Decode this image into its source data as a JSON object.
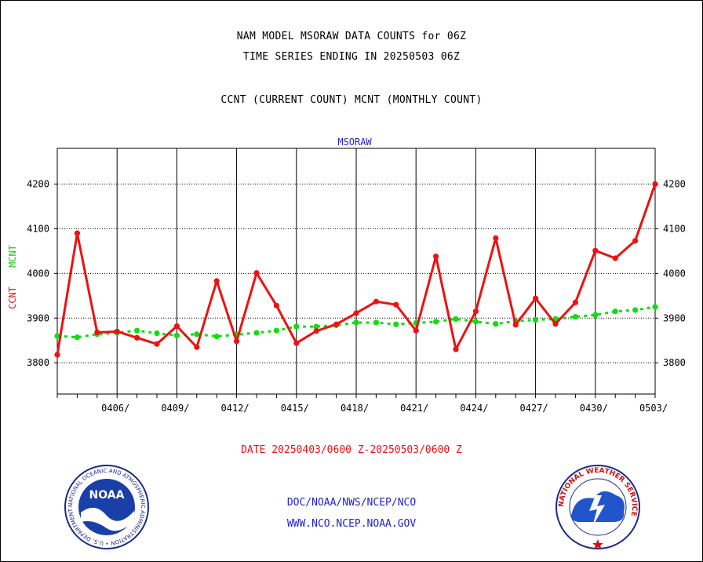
{
  "header": {
    "line1": "NAM MODEL MSORAW DATA COUNTS for 06Z",
    "line2": "TIME SERIES ENDING IN 20250503 06Z",
    "line3": "CCNT (CURRENT COUNT) MCNT (MONTHLY COUNT)"
  },
  "chart_data": {
    "type": "line",
    "title": "MSORAW",
    "ylabel_ccnt": "CCNT",
    "ylabel_mcnt": "MCNT",
    "xlabel": "DATE 20250403/0600 Z-20250503/0600 Z",
    "ylim": [
      3730,
      4280
    ],
    "xlim": [
      0,
      30
    ],
    "y_ticks": [
      3800,
      3900,
      4000,
      4100,
      4200
    ],
    "x_ticks": [
      {
        "pos": 3,
        "label": "0406/"
      },
      {
        "pos": 6,
        "label": "0409/"
      },
      {
        "pos": 9,
        "label": "0412/"
      },
      {
        "pos": 12,
        "label": "0415/"
      },
      {
        "pos": 15,
        "label": "0418/"
      },
      {
        "pos": 18,
        "label": "0421/"
      },
      {
        "pos": 21,
        "label": "0424/"
      },
      {
        "pos": 24,
        "label": "0427/"
      },
      {
        "pos": 27,
        "label": "0430/"
      },
      {
        "pos": 30,
        "label": "0503/"
      }
    ],
    "grid": true,
    "series": [
      {
        "name": "CCNT",
        "color": "#ee1111",
        "style": "solid",
        "values": [
          3818,
          4090,
          3868,
          3870,
          3856,
          3842,
          3882,
          3835,
          3983,
          3848,
          4001,
          3928,
          3844,
          3871,
          3886,
          3911,
          3937,
          3930,
          3872,
          4038,
          3830,
          3915,
          4079,
          3885,
          3944,
          3887,
          3935,
          4051,
          4034,
          4073,
          4200
        ]
      },
      {
        "name": "MCNT",
        "color": "#11dd11",
        "style": "dashed",
        "values": [
          3860,
          3857,
          3864,
          3867,
          3872,
          3866,
          3861,
          3864,
          3859,
          3863,
          3867,
          3872,
          3881,
          3881,
          3884,
          3890,
          3890,
          3886,
          3889,
          3892,
          3898,
          3892,
          3887,
          3893,
          3896,
          3898,
          3903,
          3907,
          3915,
          3918,
          3925
        ]
      }
    ]
  },
  "footer": {
    "line1": "DOC/NOAA/NWS/NCEP/NCO",
    "line2": "WWW.NCO.NCEP.NOAA.GOV",
    "date_color": "#ee1111",
    "link_color": "#2222cc"
  },
  "logos": {
    "noaa_text": "NOAA",
    "nws_ring_text": "NATIONAL WEATHER SERVICE",
    "noaa_ring_text": "NATIONAL OCEANIC AND ATMOSPHERIC ADMINISTRATION • U.S. DEPARTMENT OF COMMERCE"
  }
}
